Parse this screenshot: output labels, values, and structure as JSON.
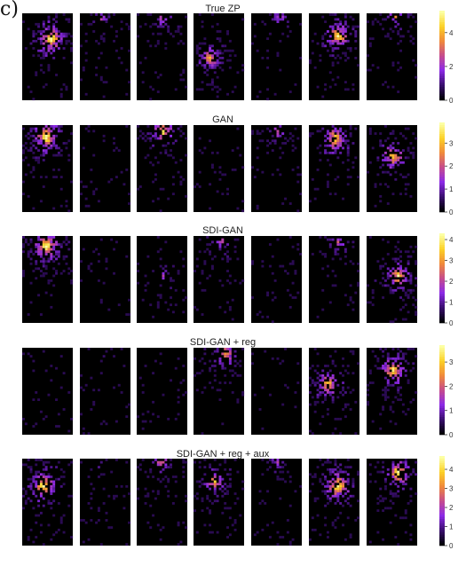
{
  "corner_label": "c)",
  "colormap": {
    "name": "plasma-like",
    "stops": [
      "#000004",
      "#3b0f70",
      "#8c29e6",
      "#c64c8c",
      "#f08a3b",
      "#fcd225",
      "#fcffa4"
    ]
  },
  "chart_data": [
    {
      "type": "heatmap",
      "title": "True ZP",
      "panels": 7,
      "zlim": [
        0,
        5.3
      ],
      "colorbar_ticks": [
        "0",
        "2",
        "4"
      ],
      "colorbar_tick_values": [
        0,
        2,
        4
      ],
      "hotspots": [
        [
          0.55,
          0.28,
          1.0
        ],
        [
          0.4,
          0.05,
          0.35
        ],
        [
          0.5,
          0.03,
          0.45
        ],
        [
          0.3,
          0.5,
          0.7
        ],
        [
          0.55,
          0.02,
          0.4
        ],
        [
          0.55,
          0.25,
          0.9
        ],
        [
          0.55,
          0.02,
          0.5
        ]
      ]
    },
    {
      "type": "heatmap",
      "title": "GAN",
      "panels": 7,
      "zlim": [
        0,
        3.9
      ],
      "colorbar_ticks": [
        "0",
        "1",
        "2",
        "3"
      ],
      "colorbar_tick_values": [
        0,
        1,
        2,
        3
      ],
      "hotspots": [
        [
          0.45,
          0.12,
          1.0
        ],
        [
          0.5,
          0.1,
          0.05
        ],
        [
          0.5,
          0.06,
          0.8
        ],
        [
          0.5,
          0.5,
          0.05
        ],
        [
          0.5,
          0.05,
          0.45
        ],
        [
          0.5,
          0.15,
          0.9
        ],
        [
          0.5,
          0.35,
          0.8
        ]
      ]
    },
    {
      "type": "heatmap",
      "title": "SDI-GAN",
      "panels": 7,
      "zlim": [
        0,
        4.3
      ],
      "colorbar_ticks": [
        "0",
        "1",
        "2",
        "3",
        "4"
      ],
      "colorbar_tick_values": [
        0,
        1,
        2,
        3,
        4
      ],
      "hotspots": [
        [
          0.45,
          0.1,
          1.0
        ],
        [
          0.5,
          0.2,
          0.05
        ],
        [
          0.5,
          0.45,
          0.3
        ],
        [
          0.5,
          0.02,
          0.5
        ],
        [
          0.5,
          0.4,
          0.05
        ],
        [
          0.55,
          0.05,
          0.45
        ],
        [
          0.6,
          0.45,
          0.8
        ]
      ]
    },
    {
      "type": "heatmap",
      "title": "SDI-GAN + reg",
      "panels": 7,
      "zlim": [
        0,
        3.7
      ],
      "colorbar_ticks": [
        "0",
        "1",
        "2",
        "3"
      ],
      "colorbar_tick_values": [
        0,
        1,
        2,
        3
      ],
      "hotspots": [
        [
          0.5,
          0.4,
          0.05
        ],
        [
          0.5,
          0.1,
          0.1
        ],
        [
          0.5,
          0.5,
          0.02
        ],
        [
          0.6,
          0.05,
          0.7
        ],
        [
          0.5,
          0.1,
          0.05
        ],
        [
          0.35,
          0.4,
          0.8
        ],
        [
          0.5,
          0.25,
          0.9
        ]
      ]
    },
    {
      "type": "heatmap",
      "title": "SDI-GAN + reg + aux",
      "panels": 7,
      "zlim": [
        0,
        4.7
      ],
      "colorbar_ticks": [
        "0",
        "1",
        "2",
        "3",
        "4"
      ],
      "colorbar_tick_values": [
        0,
        1,
        2,
        3,
        4
      ],
      "hotspots": [
        [
          0.4,
          0.3,
          0.95
        ],
        [
          0.4,
          0.05,
          0.2
        ],
        [
          0.45,
          0.02,
          0.5
        ],
        [
          0.4,
          0.25,
          0.7
        ],
        [
          0.5,
          0.02,
          0.35
        ],
        [
          0.55,
          0.3,
          1.0
        ],
        [
          0.6,
          0.15,
          0.9
        ]
      ]
    }
  ]
}
